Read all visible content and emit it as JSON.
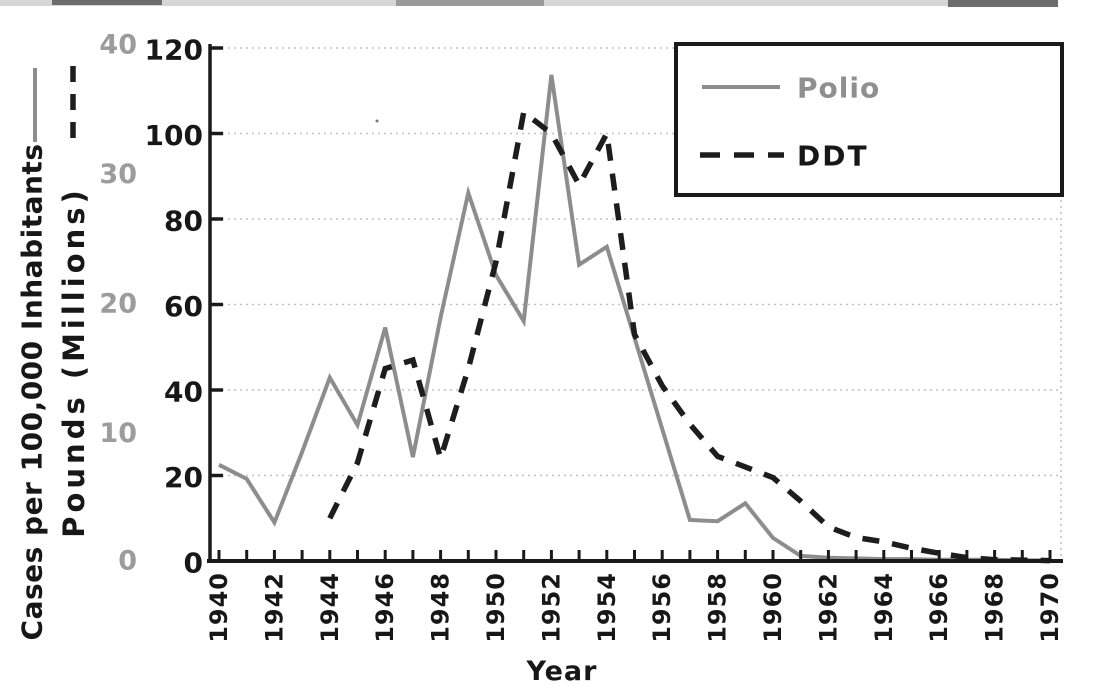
{
  "figure": {
    "background": "#ffffff",
    "ink_color": "#1a1a1a",
    "grid_color": "#c2c2c2"
  },
  "axes": {
    "left_outer": {
      "title": "Cases per 100,000 Inhabitants",
      "tick_labels": [
        "0",
        "10",
        "20",
        "30",
        "40"
      ],
      "tick_values": [
        0,
        10,
        20,
        30,
        40
      ],
      "range": [
        0,
        40
      ],
      "label_color": "#9c9c9c"
    },
    "left_inner": {
      "title": "Pounds (Millions)",
      "tick_labels": [
        "0",
        "20",
        "40",
        "60",
        "80",
        "100",
        "120"
      ],
      "tick_values": [
        0,
        20,
        40,
        60,
        80,
        100,
        120
      ],
      "range": [
        0,
        120
      ],
      "label_color": "#171717"
    },
    "x": {
      "title": "Year",
      "tick_labels": [
        "1940",
        "1942",
        "1944",
        "1946",
        "1948",
        "1950",
        "1952",
        "1954",
        "1956",
        "1958",
        "1960",
        "1962",
        "1964",
        "1966",
        "1968",
        "1970"
      ],
      "label_values": [
        1940,
        1942,
        1944,
        1946,
        1948,
        1950,
        1952,
        1954,
        1956,
        1958,
        1960,
        1962,
        1964,
        1966,
        1968,
        1970
      ],
      "minor_tick_years": [
        1940,
        1941,
        1942,
        1943,
        1944,
        1945,
        1946,
        1947,
        1948,
        1949,
        1950,
        1951,
        1952,
        1953,
        1954,
        1955,
        1956,
        1957,
        1958,
        1959,
        1960,
        1961,
        1962,
        1963,
        1964,
        1965,
        1966,
        1967,
        1968,
        1969,
        1970
      ],
      "range": [
        1940,
        1970
      ]
    }
  },
  "legend": {
    "position": "top-right",
    "items": [
      {
        "label": "Polio",
        "style": "solid",
        "color": "#8d8d8d"
      },
      {
        "label": "DDT",
        "style": "dashed",
        "color": "#1d1d1d"
      }
    ]
  },
  "chart_data": {
    "type": "line",
    "title": "",
    "xlabel": "Year",
    "x": [
      1940,
      1941,
      1942,
      1943,
      1944,
      1945,
      1946,
      1947,
      1948,
      1949,
      1950,
      1951,
      1952,
      1953,
      1954,
      1955,
      1956,
      1957,
      1958,
      1959,
      1960,
      1961,
      1962,
      1963,
      1964,
      1965,
      1966,
      1967,
      1968,
      1969,
      1970
    ],
    "series": [
      {
        "name": "Polio",
        "axis": "cases_per_100k",
        "ylabel": "Cases per 100,000 Inhabitants",
        "ylim": [
          0,
          40
        ],
        "style": "solid",
        "color": "#8d8d8d",
        "values": [
          7.5,
          6.4,
          3.0,
          8.5,
          14.3,
          10.6,
          18.2,
          8.1,
          19.0,
          28.7,
          22.3,
          18.7,
          37.9,
          23.1,
          24.5,
          17.4,
          10.3,
          3.2,
          3.1,
          4.5,
          1.8,
          0.4,
          0.25,
          0.2,
          0.15,
          0.15,
          0.1,
          0.1,
          0.1,
          0.05,
          0.05
        ]
      },
      {
        "name": "DDT",
        "axis": "pounds_millions",
        "ylabel": "Pounds (Millions)",
        "ylim": [
          0,
          120
        ],
        "style": "dashed",
        "color": "#1d1d1d",
        "values": [
          null,
          null,
          null,
          null,
          10,
          23,
          45,
          47,
          24,
          45,
          70,
          105,
          100,
          88,
          100,
          53,
          41,
          32,
          24.5,
          22,
          19.5,
          14,
          8,
          5.5,
          4.5,
          3,
          1.8,
          0.8,
          0.3,
          0.2,
          0.1
        ]
      }
    ],
    "gridlines": {
      "axis": "pounds_millions",
      "values": [
        20,
        40,
        60,
        80,
        100,
        120
      ],
      "style": "dotted"
    },
    "legend_position": "top-right"
  }
}
